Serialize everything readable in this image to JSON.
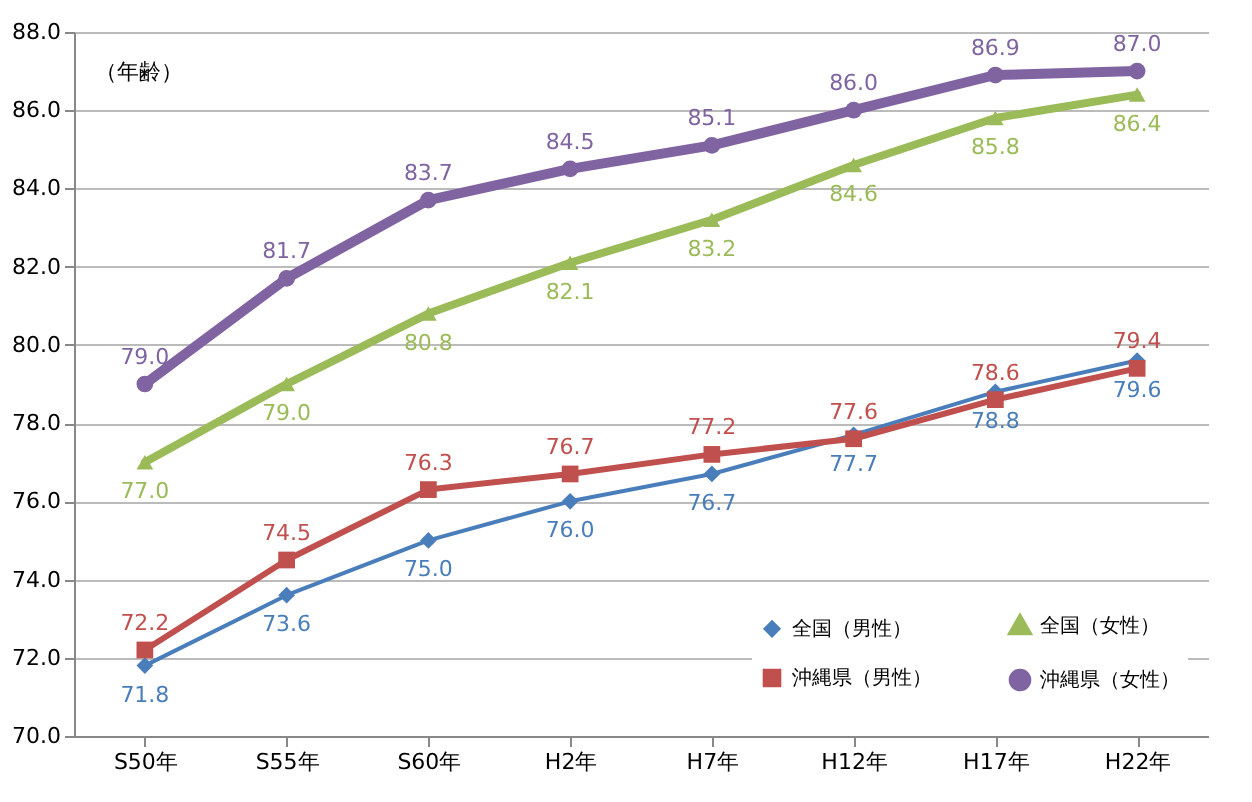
{
  "chart_data": {
    "type": "line",
    "ylabel": "（年齢）",
    "categories": [
      "S50年",
      "S55年",
      "S60年",
      "H2年",
      "H7年",
      "H12年",
      "H17年",
      "H22年"
    ],
    "ylim": [
      70,
      88
    ],
    "yticks": [
      {
        "value": 70,
        "label": "70.0"
      },
      {
        "value": 72,
        "label": "72.0"
      },
      {
        "value": 74,
        "label": "74.0"
      },
      {
        "value": 76,
        "label": "76.0"
      },
      {
        "value": 78,
        "label": "78.0"
      },
      {
        "value": 80,
        "label": "80.0"
      },
      {
        "value": 82,
        "label": "82.0"
      },
      {
        "value": 84,
        "label": "84.0"
      },
      {
        "value": 86,
        "label": "86.0"
      },
      {
        "value": 88,
        "label": "88.0"
      }
    ],
    "grid": "y",
    "legend": "bottom right",
    "data_labels": true,
    "series": [
      {
        "name": "全国（男性）",
        "color": "#4a7ebb",
        "marker": "diamond",
        "values": [
          71.8,
          73.6,
          75.0,
          76.0,
          76.7,
          77.7,
          78.8,
          79.6
        ],
        "value_labels": [
          "71.8",
          "73.6",
          "75.0",
          "76.0",
          "76.7",
          "77.7",
          "78.8",
          "79.6"
        ]
      },
      {
        "name": "沖縄県（男性）",
        "color": "#c0504d",
        "marker": "square",
        "values": [
          72.2,
          74.5,
          76.3,
          76.7,
          77.2,
          77.6,
          78.6,
          79.4
        ],
        "value_labels": [
          "72.2",
          "74.5",
          "76.3",
          "76.7",
          "77.2",
          "77.6",
          "78.6",
          "79.4"
        ]
      },
      {
        "name": "全国（女性）",
        "color": "#9bbb59",
        "marker": "triangle",
        "values": [
          77.0,
          79.0,
          80.8,
          82.1,
          83.2,
          84.6,
          85.8,
          86.4
        ],
        "value_labels": [
          "77.0",
          "79.0",
          "80.8",
          "82.1",
          "83.2",
          "84.6",
          "85.8",
          "86.4"
        ]
      },
      {
        "name": "沖縄県（女性）",
        "color": "#8064a2",
        "marker": "circle",
        "values": [
          79.0,
          81.7,
          83.7,
          84.5,
          85.1,
          86.0,
          86.9,
          87.0
        ],
        "value_labels": [
          "79.0",
          "81.7",
          "83.7",
          "84.5",
          "85.1",
          "86.0",
          "86.9",
          "87.0"
        ]
      }
    ]
  }
}
